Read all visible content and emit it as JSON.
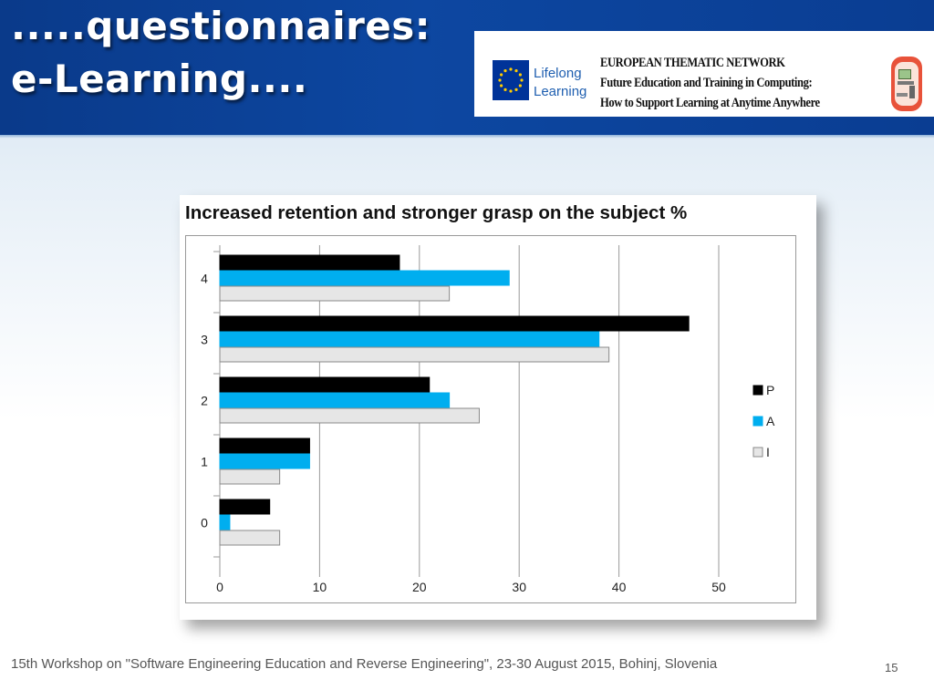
{
  "slide": {
    "title_line1": ".....questionnaires:",
    "title_line2": "e-Learning....",
    "footer": "15th Workshop on \"Software Engineering Education and Reverse Engineering\", 23-30 August 2015, Bohinj, Slovenia",
    "page_number": "15"
  },
  "banner": {
    "logo_text_1": "Lifelong",
    "logo_text_2": "Learning",
    "line1": "EUROPEAN THEMATIC NETWORK",
    "line2": "Future Education and Training in Computing:",
    "line3": "How to Support Learning at Anytime Anywhere",
    "flag_color": "#003399",
    "star_color": "#ffcc00",
    "right_logo_color": "#e8523a"
  },
  "chart_data": {
    "type": "bar",
    "orientation": "horizontal",
    "title": "Increased retention and stronger grasp on the subject %",
    "categories": [
      "4",
      "3",
      "2",
      "1",
      "0"
    ],
    "series": [
      {
        "name": "P",
        "color": "#000000",
        "values": [
          18,
          47,
          21,
          9,
          5
        ]
      },
      {
        "name": "A",
        "color": "#00aeef",
        "values": [
          29,
          38,
          23,
          9,
          1
        ]
      },
      {
        "name": "I",
        "color": "#e6e6e6",
        "values": [
          23,
          39,
          26,
          6,
          6
        ]
      }
    ],
    "xlim": [
      0,
      50
    ],
    "xticks": [
      "0",
      "10",
      "20",
      "30",
      "40",
      "50"
    ],
    "grid": true,
    "legend": "right"
  }
}
